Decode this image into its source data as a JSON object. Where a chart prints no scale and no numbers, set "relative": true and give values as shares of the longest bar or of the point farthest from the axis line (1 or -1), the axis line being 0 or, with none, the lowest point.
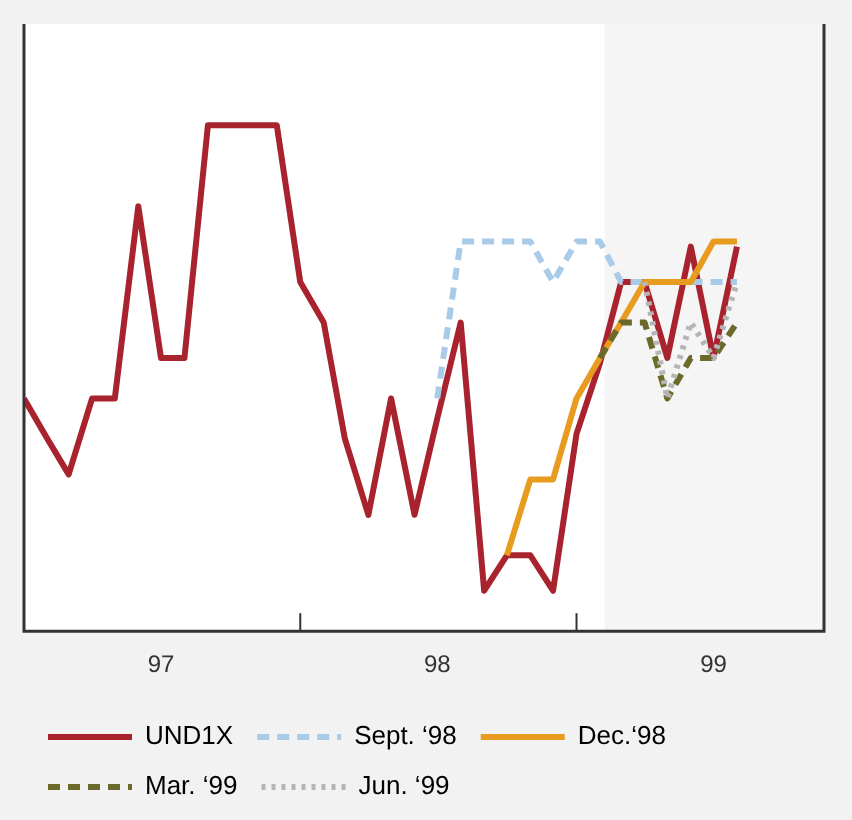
{
  "chart_data": {
    "type": "line",
    "relative": true,
    "marker": "none",
    "legend": "bottom",
    "x": [
      "1997-01",
      "1997-02",
      "1997-03",
      "1997-04",
      "1997-05",
      "1997-06",
      "1997-07",
      "1997-08",
      "1997-09",
      "1997-10",
      "1997-11",
      "1997-12",
      "1998-01",
      "1998-02",
      "1998-03",
      "1998-04",
      "1998-05",
      "1998-06",
      "1998-07",
      "1998-08",
      "1998-09",
      "1998-10",
      "1998-11",
      "1998-12",
      "1999-01",
      "1999-02",
      "1999-03",
      "1999-04",
      "1999-05",
      "1999-06",
      "1999-07",
      "1999-08"
    ],
    "xlim": [
      "1997-01",
      "1999-11-24"
    ],
    "xticks": [
      {
        "value": "1997-07",
        "label": "97"
      },
      {
        "value": "1998-01",
        "label": null
      },
      {
        "value": "1998-07",
        "label": "98"
      },
      {
        "value": "1999-01",
        "label": null
      },
      {
        "value": "1999-07",
        "label": "99"
      }
    ],
    "bands": [
      {
        "axis": "x",
        "from": "1999-02-07",
        "to": "1999-11-24",
        "color": "#f5f5f5"
      }
    ],
    "series": [
      {
        "name": "UND1X",
        "color": "#a8232d",
        "line_style": "solid",
        "values": [
          0.46,
          0.38,
          0.31,
          0.46,
          0.46,
          0.84,
          0.54,
          0.54,
          1.0,
          1.0,
          1.0,
          1.0,
          0.69,
          0.61,
          0.38,
          0.23,
          0.46,
          0.23,
          0.42,
          0.61,
          0.08,
          0.15,
          0.15,
          0.08,
          0.39,
          0.53,
          0.69,
          0.69,
          0.54,
          0.76,
          0.54,
          0.76
        ]
      },
      {
        "name": "Sept. ‘98",
        "color": "#a9cbe8",
        "line_style": "dashed",
        "values": [
          null,
          null,
          null,
          null,
          null,
          null,
          null,
          null,
          null,
          null,
          null,
          null,
          null,
          null,
          null,
          null,
          null,
          null,
          0.46,
          0.77,
          0.77,
          0.77,
          0.77,
          0.69,
          0.77,
          0.77,
          0.69,
          0.69,
          0.69,
          0.69,
          0.69,
          0.69
        ]
      },
      {
        "name": "Dec.‘98",
        "color": "#e89c1f",
        "line_style": "solid",
        "values": [
          null,
          null,
          null,
          null,
          null,
          null,
          null,
          null,
          null,
          null,
          null,
          null,
          null,
          null,
          null,
          null,
          null,
          null,
          null,
          null,
          null,
          0.15,
          0.3,
          0.3,
          0.46,
          0.54,
          0.61,
          0.69,
          0.69,
          0.69,
          0.77,
          0.77
        ]
      },
      {
        "name": "Mar. ‘99",
        "color": "#6b6a2a",
        "line_style": "dashed",
        "values": [
          null,
          null,
          null,
          null,
          null,
          null,
          null,
          null,
          null,
          null,
          null,
          null,
          null,
          null,
          null,
          null,
          null,
          null,
          null,
          null,
          null,
          null,
          null,
          null,
          null,
          0.54,
          0.61,
          0.61,
          0.46,
          0.54,
          0.54,
          0.61
        ]
      },
      {
        "name": "Jun. ‘99",
        "color": "#b5b5b5",
        "line_style": "dotted",
        "values": [
          null,
          null,
          null,
          null,
          null,
          null,
          null,
          null,
          null,
          null,
          null,
          null,
          null,
          null,
          null,
          null,
          null,
          null,
          null,
          null,
          null,
          null,
          null,
          null,
          null,
          null,
          null,
          0.69,
          0.46,
          0.61,
          0.54,
          0.69
        ]
      }
    ]
  }
}
